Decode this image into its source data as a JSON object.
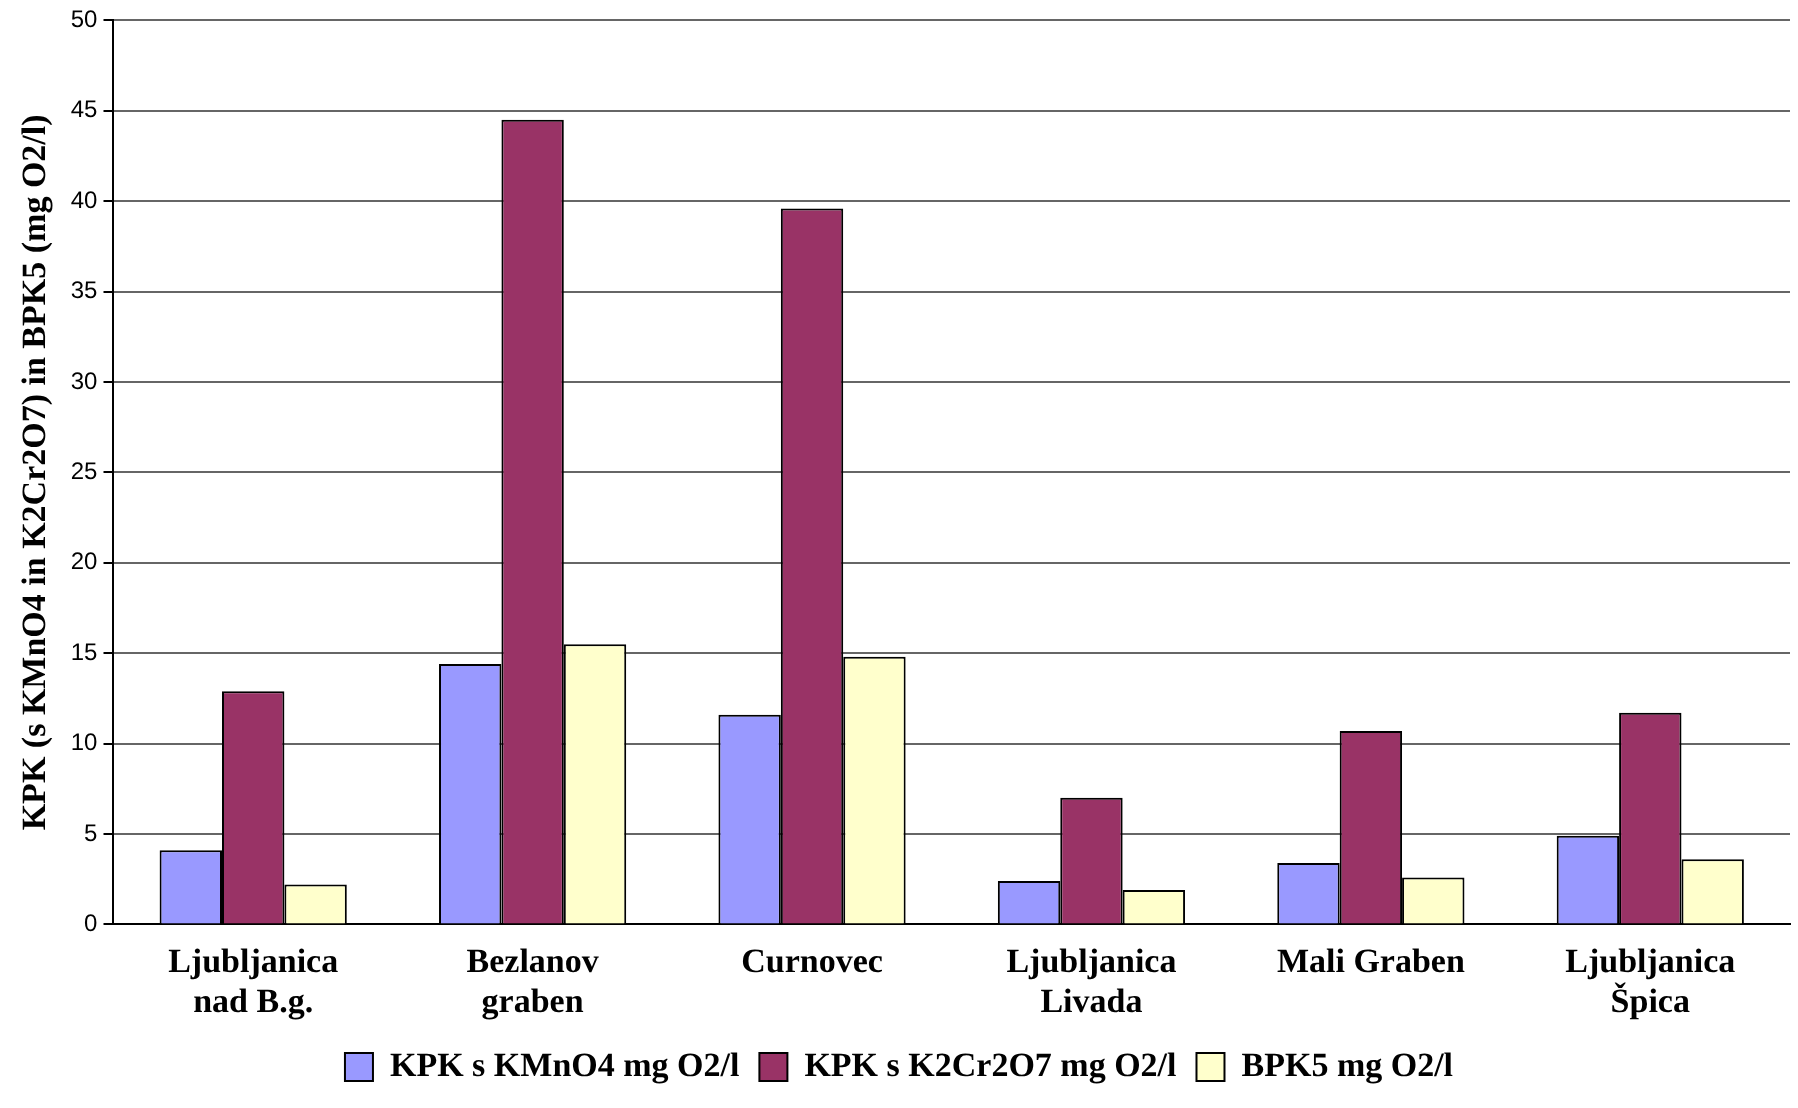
{
  "chart_data": {
    "type": "bar",
    "ylabel": "KPK (s KMnO4 in K2Cr2O7) in BPK5 (mg O2/l)",
    "categories": [
      "Ljubljanica\nnad B.g.",
      "Bezlanov\ngraben",
      "Curnovec",
      "Ljubljanica\nLivada",
      "Mali Graben",
      "Ljubljanica\nŠpica"
    ],
    "series": [
      {
        "name": "KPK s KMnO4 mg O2/l",
        "color": "#9999ff",
        "values": [
          4.1,
          14.4,
          11.6,
          2.4,
          3.4,
          4.9
        ]
      },
      {
        "name": "KPK s K2Cr2O7 mg O2/l",
        "color": "#993366",
        "values": [
          12.9,
          44.5,
          39.6,
          7.0,
          10.7,
          11.7
        ]
      },
      {
        "name": "BPK5 mg O2/l",
        "color": "#ffffcc",
        "values": [
          2.2,
          15.5,
          14.8,
          1.9,
          2.6,
          3.6
        ]
      }
    ],
    "ylim": [
      0,
      50
    ],
    "yticks": [
      0,
      5,
      10,
      15,
      20,
      25,
      30,
      35,
      40,
      45,
      50
    ],
    "grid": "y",
    "legend": "bottom"
  }
}
